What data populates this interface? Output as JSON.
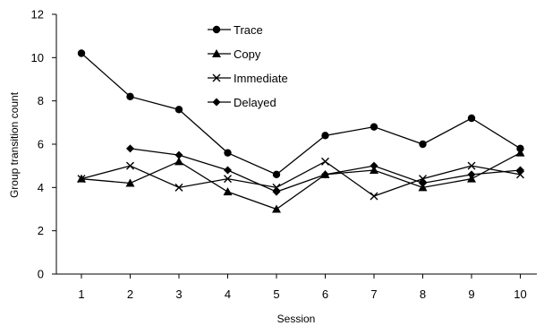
{
  "chart_data": {
    "type": "line",
    "xlabel": "Session",
    "ylabel": "Group transition count",
    "x": [
      1,
      2,
      3,
      4,
      5,
      6,
      7,
      8,
      9,
      10
    ],
    "x_tick_labels": [
      "1",
      "2",
      "3",
      "4",
      "5",
      "6",
      "7",
      "8",
      "9",
      "10"
    ],
    "ylim": [
      0,
      12
    ],
    "y_ticks": [
      0,
      2,
      4,
      6,
      8,
      10,
      12
    ],
    "y_tick_labels": [
      "0",
      "2",
      "4",
      "6",
      "8",
      "10",
      "12"
    ],
    "grid": false,
    "legend_position": "top-center",
    "series": [
      {
        "name": "Trace",
        "marker": "circle",
        "color": "#000000",
        "values": [
          10.2,
          8.2,
          7.6,
          5.6,
          4.6,
          6.4,
          6.8,
          6.0,
          7.2,
          5.8
        ]
      },
      {
        "name": "Copy",
        "marker": "triangle",
        "color": "#000000",
        "values": [
          4.4,
          4.2,
          5.2,
          3.8,
          3.0,
          4.6,
          4.8,
          4.0,
          4.4,
          5.6
        ]
      },
      {
        "name": "Immediate",
        "marker": "x",
        "color": "#000000",
        "values": [
          4.4,
          5.0,
          4.0,
          4.4,
          4.0,
          5.2,
          3.6,
          4.4,
          5.0,
          4.6
        ]
      },
      {
        "name": "Delayed",
        "marker": "diamond",
        "color": "#000000",
        "values": [
          null,
          5.8,
          5.5,
          4.8,
          3.8,
          4.6,
          5.0,
          4.2,
          4.6,
          4.8
        ]
      }
    ]
  }
}
